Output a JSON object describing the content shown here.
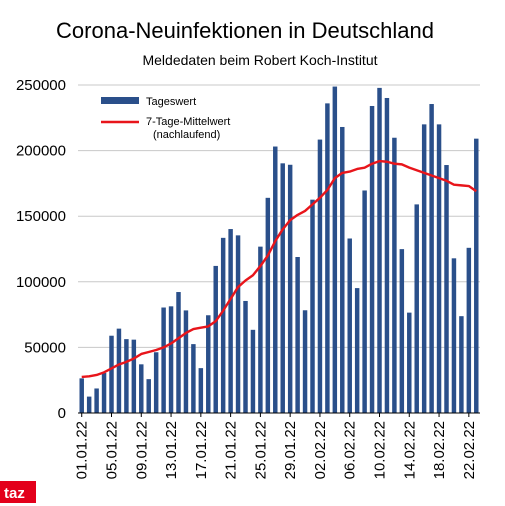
{
  "brand": {
    "logo_text": "taz",
    "color": "#e3001b"
  },
  "chart_data": {
    "type": "bar",
    "title": "Corona-Neuinfektionen in Deutschland",
    "subtitle": "Meldedaten beim Robert Koch-Institut",
    "ylim": [
      0,
      250000
    ],
    "yticks": [
      0,
      50000,
      100000,
      150000,
      200000,
      250000
    ],
    "xticks": [
      "01.01.22",
      "05.01.22",
      "09.01.22",
      "13.01.22",
      "17.01.22",
      "21.01.22",
      "25.01.22",
      "29.01.22",
      "02.02.22",
      "06.02.22",
      "10.02.22",
      "14.02.22",
      "18.02.22",
      "22.02.22"
    ],
    "legend": {
      "position": "top-left",
      "bar_label": "Tageswert",
      "line_label_1": "7-Tage-Mittelwert",
      "line_label_2": "(nachlaufend)"
    },
    "colors": {
      "bar": "#2a4f8a",
      "line": "#e8151b"
    },
    "series": [
      {
        "kind": "bar",
        "values": [
          26400,
          12500,
          18700,
          30500,
          58900,
          64300,
          56300,
          55900,
          37100,
          25800,
          46300,
          80400,
          81300,
          92200,
          78200,
          52500,
          34200,
          74500,
          112100,
          133500,
          140200,
          135400,
          85400,
          63400,
          126800,
          164000,
          203100,
          190300,
          189200,
          118900,
          78300,
          162600,
          208400,
          236000,
          248800,
          218000,
          133000,
          95200,
          169600,
          234000,
          247800,
          240100,
          209800,
          124900,
          76500,
          159000,
          220000,
          235500,
          220000,
          189000,
          117900,
          73800,
          125900,
          209100
        ]
      },
      {
        "kind": "line",
        "values": [
          27500,
          28000,
          29000,
          31000,
          34000,
          37000,
          39000,
          41500,
          45000,
          46500,
          48000,
          50000,
          53000,
          57000,
          61000,
          64000,
          65000,
          66000,
          70000,
          78000,
          87000,
          96000,
          101000,
          105000,
          112000,
          120000,
          131000,
          140000,
          147000,
          151000,
          154000,
          159000,
          164000,
          170000,
          179000,
          183000,
          184000,
          186000,
          187000,
          190000,
          192000,
          191500,
          190000,
          189500,
          187000,
          185000,
          183000,
          181000,
          179000,
          177000,
          174000,
          173500,
          173000,
          169000
        ]
      }
    ]
  }
}
